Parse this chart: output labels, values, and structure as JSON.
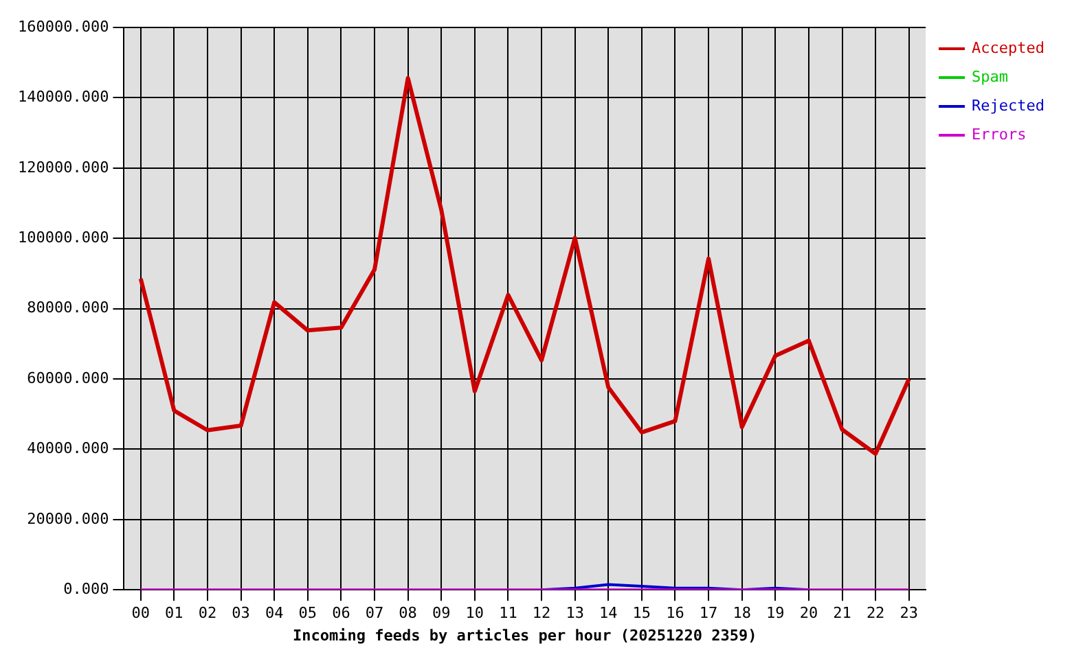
{
  "chart_data": {
    "type": "line",
    "xlabel": "Incoming feeds by articles per hour (20251220 2359)",
    "categories": [
      "00",
      "01",
      "02",
      "03",
      "04",
      "05",
      "06",
      "07",
      "08",
      "09",
      "10",
      "11",
      "12",
      "13",
      "14",
      "15",
      "16",
      "17",
      "18",
      "19",
      "20",
      "21",
      "22",
      "23"
    ],
    "series": [
      {
        "name": "Accepted",
        "color": "#cc0000",
        "values": [
          88500,
          51000,
          45400,
          46700,
          81800,
          73800,
          74600,
          91100,
          145600,
          108100,
          56500,
          83900,
          65300,
          100100,
          57600,
          44800,
          48000,
          94200,
          46300,
          66600,
          70900,
          45600,
          38700,
          60000
        ]
      },
      {
        "name": "Spam",
        "color": "#00cc00",
        "values": [
          null,
          null,
          null,
          null,
          null,
          null,
          null,
          null,
          null,
          null,
          null,
          null,
          null,
          null,
          null,
          null,
          null,
          null,
          null,
          null,
          null,
          null,
          null,
          null
        ]
      },
      {
        "name": "Rejected",
        "color": "#0000cc",
        "values": [
          null,
          null,
          null,
          null,
          null,
          null,
          null,
          null,
          null,
          null,
          null,
          null,
          0,
          500,
          1500,
          1000,
          500,
          500,
          0,
          500,
          0,
          null,
          null,
          null
        ]
      },
      {
        "name": "Errors",
        "color": "#cc00cc",
        "values": [
          0,
          0,
          0,
          0,
          0,
          0,
          0,
          0,
          0,
          0,
          0,
          0,
          0,
          0,
          0,
          0,
          0,
          0,
          0,
          0,
          0,
          0,
          0,
          0
        ]
      }
    ],
    "ylim": [
      0,
      160000
    ],
    "yticks": [
      {
        "value": 0,
        "label": "0.000"
      },
      {
        "value": 20000,
        "label": "20000.000"
      },
      {
        "value": 40000,
        "label": "40000.000"
      },
      {
        "value": 60000,
        "label": "60000.000"
      },
      {
        "value": 80000,
        "label": "80000.000"
      },
      {
        "value": 100000,
        "label": "100000.000"
      },
      {
        "value": 120000,
        "label": "120000.000"
      },
      {
        "value": 140000,
        "label": "140000.000"
      },
      {
        "value": 160000,
        "label": "160000.000"
      }
    ],
    "grid": true,
    "legend": "top right"
  }
}
